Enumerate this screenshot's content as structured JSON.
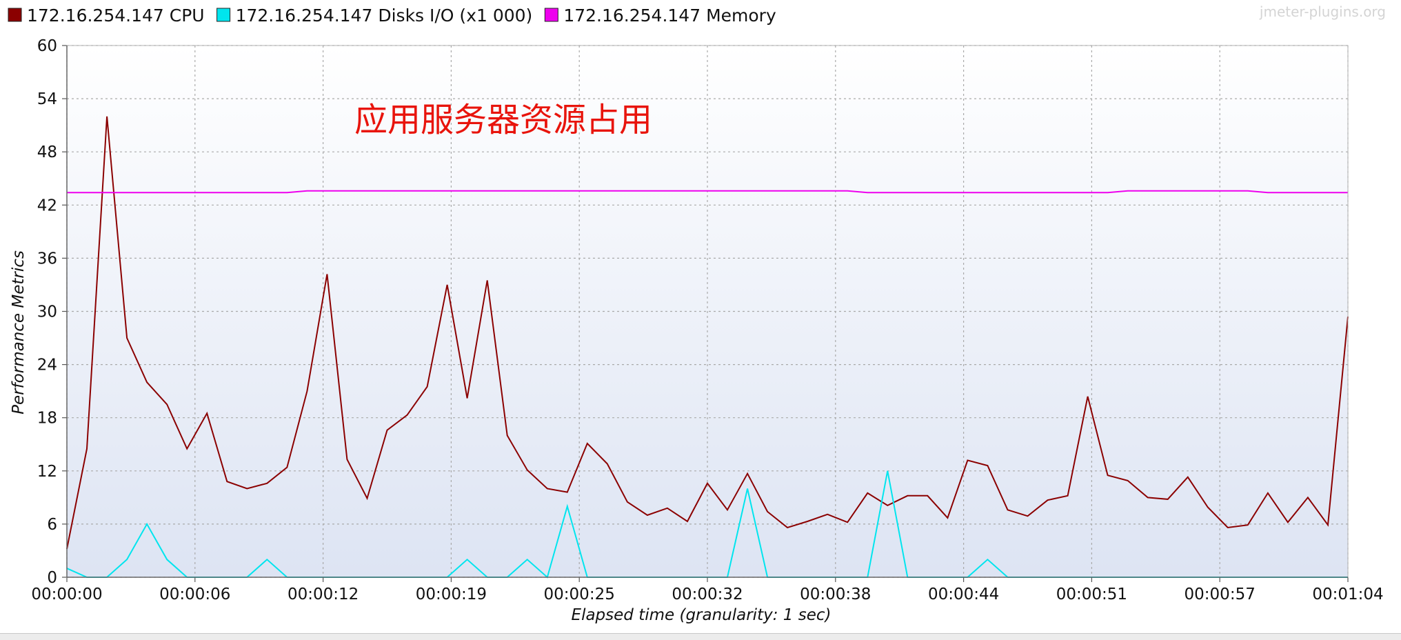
{
  "chart_data": {
    "type": "line",
    "title": "",
    "annotation": "应用服务器资源占用",
    "watermark": "jmeter-plugins.org",
    "xlabel": "Elapsed time (granularity: 1 sec)",
    "ylabel": "Performance Metrics",
    "ylim": [
      0,
      60
    ],
    "yticks": [
      "0",
      "6",
      "12",
      "18",
      "24",
      "30",
      "36",
      "42",
      "48",
      "54",
      "60"
    ],
    "xlim": [
      0,
      64
    ],
    "xticks": [
      {
        "t": 0,
        "label": "00:00:00"
      },
      {
        "t": 6.4,
        "label": "00:00:06"
      },
      {
        "t": 12.8,
        "label": "00:00:12"
      },
      {
        "t": 19.2,
        "label": "00:00:19"
      },
      {
        "t": 25.6,
        "label": "00:00:25"
      },
      {
        "t": 32,
        "label": "00:00:32"
      },
      {
        "t": 38.4,
        "label": "00:00:38"
      },
      {
        "t": 44.8,
        "label": "00:00:44"
      },
      {
        "t": 51.2,
        "label": "00:00:51"
      },
      {
        "t": 57.6,
        "label": "00:00:57"
      },
      {
        "t": 64,
        "label": "00:01:04"
      }
    ],
    "grid": true,
    "legend_position": "top-left",
    "series": [
      {
        "name": "172.16.254.147 CPU",
        "color": "#8b0000",
        "x": [
          0,
          1,
          2,
          3,
          4,
          5,
          6,
          7,
          8,
          9,
          10,
          11,
          12,
          13,
          14,
          15,
          16,
          17,
          18,
          19,
          20,
          21,
          22,
          23,
          24,
          25,
          26,
          27,
          28,
          29,
          30,
          31,
          32,
          33,
          34,
          35,
          36,
          37,
          38,
          39,
          40,
          41,
          42,
          43,
          44,
          45,
          46,
          47,
          48,
          49,
          50,
          51,
          52,
          53,
          54,
          55,
          56,
          57,
          58,
          59,
          60,
          61,
          62,
          63,
          64
        ],
        "values": [
          3.2,
          14.5,
          52,
          27,
          22,
          19.5,
          14.5,
          18.5,
          10.8,
          10,
          10.6,
          12.4,
          21,
          34.2,
          13.3,
          8.9,
          16.6,
          18.3,
          21.5,
          33,
          20.2,
          33.5,
          16,
          12.1,
          10,
          9.6,
          15.1,
          12.8,
          8.5,
          7,
          7.8,
          6.3,
          10.6,
          7.6,
          11.7,
          7.4,
          5.6,
          6.3,
          7.1,
          6.2,
          9.5,
          8.1,
          9.2,
          9.2,
          6.7,
          13.2,
          12.6,
          7.6,
          6.9,
          8.7,
          9.2,
          20.4,
          11.5,
          10.9,
          9,
          8.8,
          11.3,
          7.9,
          5.6,
          5.9,
          9.5,
          6.2,
          9,
          5.9,
          29.4
        ]
      },
      {
        "name": "172.16.254.147 Disks I/O (x1 000)",
        "color": "#00e5ee",
        "x": [
          0,
          1,
          2,
          3,
          4,
          5,
          6,
          7,
          8,
          9,
          10,
          11,
          12,
          13,
          14,
          15,
          16,
          17,
          18,
          19,
          20,
          21,
          22,
          23,
          24,
          25,
          26,
          27,
          28,
          29,
          30,
          31,
          32,
          33,
          34,
          35,
          36,
          37,
          38,
          39,
          40,
          41,
          42,
          43,
          44,
          45,
          46,
          47,
          48,
          49,
          50,
          51,
          52,
          53,
          54,
          55,
          56,
          57,
          58,
          59,
          60,
          61,
          62,
          63,
          64
        ],
        "values": [
          1,
          0,
          0,
          2,
          6,
          2,
          0,
          0,
          0,
          0,
          2,
          0,
          0,
          0,
          0,
          0,
          0,
          0,
          0,
          0,
          2,
          0,
          0,
          2,
          0,
          8,
          0,
          0,
          0,
          0,
          0,
          0,
          0,
          0,
          10,
          0,
          0,
          0,
          0,
          0,
          0,
          12,
          0,
          0,
          0,
          0,
          2,
          0,
          0,
          0,
          0,
          0,
          0,
          0,
          0,
          0,
          0,
          0,
          0,
          0,
          0,
          0,
          0,
          0,
          0
        ]
      },
      {
        "name": "172.16.254.147 Memory",
        "color": "#ee00ee",
        "x": [
          0,
          5,
          10,
          11,
          12,
          19,
          25,
          32,
          38,
          39,
          40,
          44,
          51,
          52,
          53,
          57,
          59,
          60,
          64
        ],
        "values": [
          43.4,
          43.4,
          43.4,
          43.4,
          43.6,
          43.6,
          43.6,
          43.6,
          43.6,
          43.6,
          43.4,
          43.4,
          43.4,
          43.4,
          43.6,
          43.6,
          43.6,
          43.4,
          43.4
        ]
      }
    ]
  }
}
